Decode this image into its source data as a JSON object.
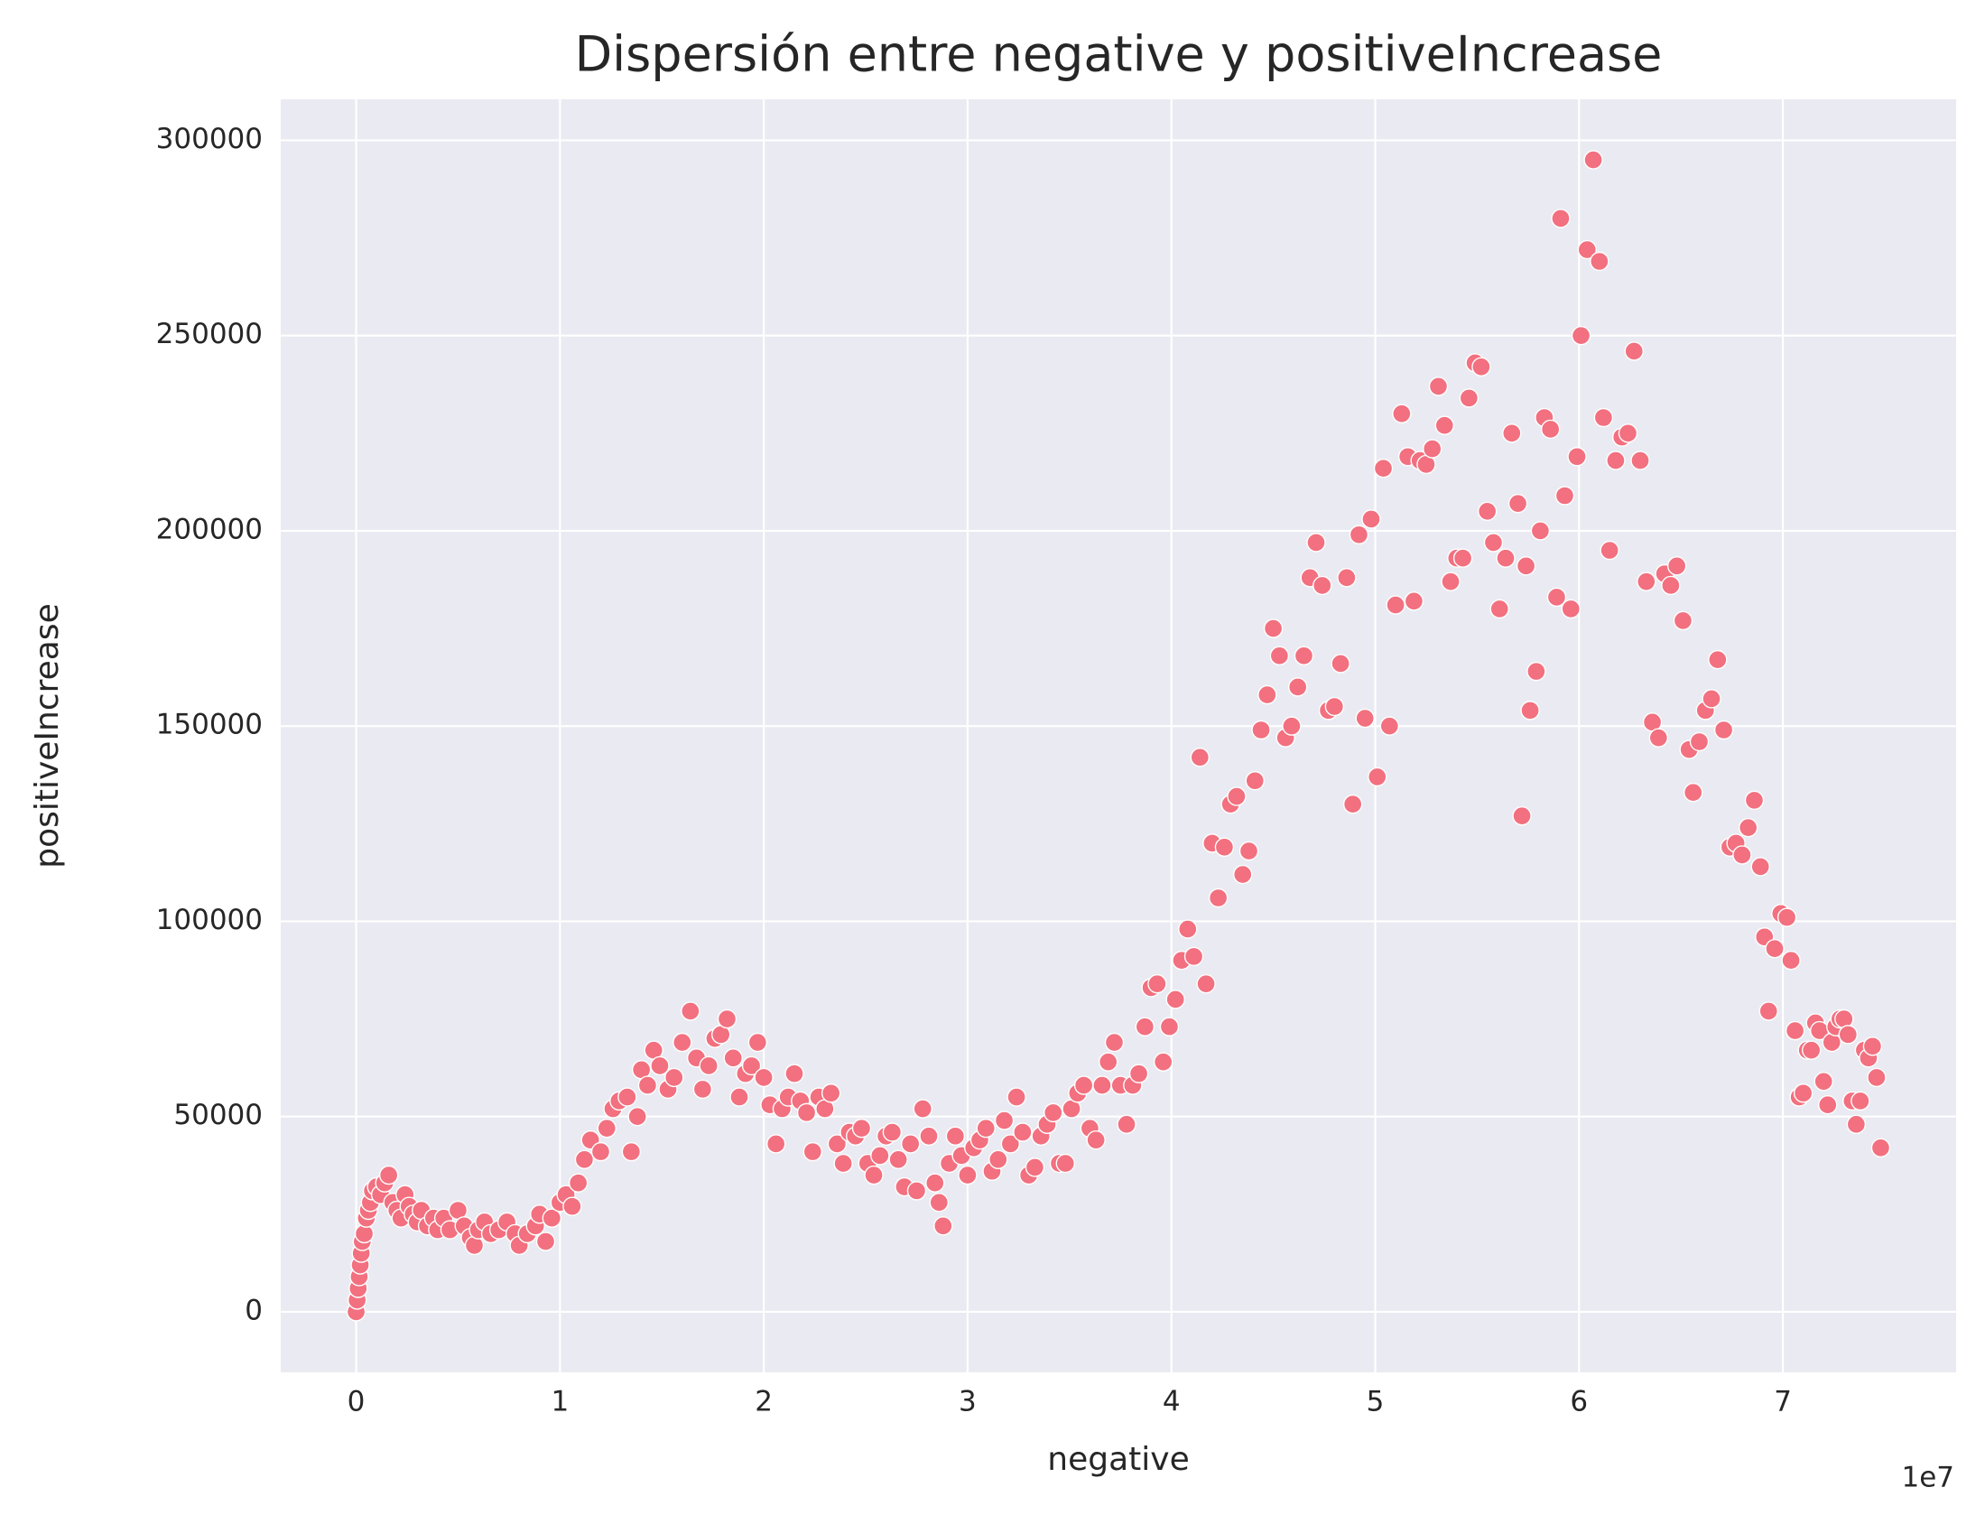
{
  "chart_data": {
    "type": "scatter",
    "title": "Dispersión entre negative y positiveIncrease",
    "x_label": "negative",
    "y_label": "positiveIncrease",
    "x_offset_label": "1e7",
    "color": "#f2707f",
    "background": "#eaeaf2",
    "grid": true,
    "xlim": [
      -3700000,
      78500000
    ],
    "ylim": [
      -15500,
      310500
    ],
    "xticks": [
      {
        "value": 0,
        "label": "0"
      },
      {
        "value": 10000000,
        "label": "1"
      },
      {
        "value": 20000000,
        "label": "2"
      },
      {
        "value": 30000000,
        "label": "3"
      },
      {
        "value": 40000000,
        "label": "4"
      },
      {
        "value": 50000000,
        "label": "5"
      },
      {
        "value": 60000000,
        "label": "6"
      },
      {
        "value": 70000000,
        "label": "7"
      }
    ],
    "yticks": [
      0,
      50000,
      100000,
      150000,
      200000,
      250000,
      300000
    ],
    "x": [
      0,
      50000,
      100000,
      150000,
      200000,
      250000,
      300000,
      400000,
      500000,
      600000,
      700000,
      800000,
      1000000,
      1200000,
      1400000,
      1600000,
      1800000,
      2000000,
      2200000,
      2400000,
      2600000,
      2800000,
      3000000,
      3200000,
      3500000,
      3800000,
      4000000,
      4300000,
      4600000,
      5000000,
      5300000,
      5600000,
      5800000,
      6000000,
      6300000,
      6600000,
      7000000,
      7400000,
      7800000,
      8000000,
      8400000,
      8800000,
      9000000,
      9300000,
      9600000,
      10000000,
      10300000,
      10600000,
      10900000,
      11200000,
      11500000,
      12000000,
      12300000,
      12600000,
      12900000,
      13300000,
      13500000,
      13800000,
      14000000,
      14300000,
      14600000,
      14900000,
      15300000,
      15600000,
      16000000,
      16400000,
      16700000,
      17000000,
      17300000,
      17600000,
      17900000,
      18200000,
      18500000,
      18800000,
      19100000,
      19400000,
      19700000,
      20000000,
      20300000,
      20600000,
      20900000,
      21200000,
      21500000,
      21800000,
      22100000,
      22400000,
      22700000,
      23000000,
      23300000,
      23600000,
      23900000,
      24200000,
      24500000,
      24800000,
      25100000,
      25400000,
      25700000,
      26000000,
      26300000,
      26600000,
      26900000,
      27200000,
      27500000,
      27800000,
      28100000,
      28400000,
      28600000,
      28800000,
      29100000,
      29400000,
      29700000,
      30000000,
      30300000,
      30600000,
      30900000,
      31200000,
      31500000,
      31800000,
      32100000,
      32400000,
      32700000,
      33000000,
      33300000,
      33600000,
      33900000,
      34200000,
      34500000,
      34800000,
      35100000,
      35400000,
      35700000,
      36000000,
      36300000,
      36600000,
      36900000,
      37200000,
      37500000,
      37800000,
      38100000,
      38400000,
      38700000,
      39000000,
      39300000,
      39600000,
      39900000,
      40200000,
      40500000,
      40800000,
      41100000,
      41400000,
      41700000,
      42000000,
      42300000,
      42600000,
      42900000,
      43200000,
      43500000,
      43800000,
      44100000,
      44400000,
      44700000,
      45000000,
      45300000,
      45600000,
      45900000,
      46200000,
      46500000,
      46800000,
      47100000,
      47400000,
      47700000,
      48000000,
      48300000,
      48600000,
      48900000,
      49200000,
      49500000,
      49800000,
      50100000,
      50400000,
      50700000,
      51000000,
      51300000,
      51600000,
      51900000,
      52200000,
      52500000,
      52800000,
      53100000,
      53400000,
      53700000,
      54000000,
      54300000,
      54600000,
      54900000,
      55200000,
      55500000,
      55800000,
      56100000,
      56400000,
      56700000,
      57000000,
      57200000,
      57400000,
      57600000,
      57900000,
      58100000,
      58300000,
      58600000,
      58900000,
      59100000,
      59300000,
      59600000,
      59900000,
      60100000,
      60400000,
      60700000,
      61000000,
      61200000,
      61500000,
      61800000,
      62100000,
      62400000,
      62700000,
      63000000,
      63300000,
      63600000,
      63900000,
      64200000,
      64500000,
      64800000,
      65100000,
      65400000,
      65600000,
      65900000,
      66200000,
      66500000,
      66800000,
      67100000,
      67400000,
      67700000,
      68000000,
      68300000,
      68600000,
      68900000,
      69100000,
      69300000,
      69600000,
      69900000,
      70200000,
      70400000,
      70600000,
      70800000,
      71000000,
      71200000,
      71400000,
      71600000,
      71800000,
      72000000,
      72200000,
      72400000,
      72600000,
      72800000,
      73000000,
      73200000,
      73400000,
      73600000,
      73800000,
      74000000,
      74200000,
      74400000,
      74600000,
      74800000
    ],
    "values": [
      0,
      3000,
      6000,
      9000,
      12000,
      15000,
      18000,
      20000,
      24000,
      26000,
      28000,
      31000,
      32000,
      30000,
      33000,
      35000,
      28000,
      26000,
      24000,
      30000,
      27000,
      25000,
      23000,
      26000,
      22000,
      24000,
      21000,
      24000,
      21000,
      26000,
      22000,
      19000,
      17000,
      21000,
      23000,
      20000,
      21000,
      23000,
      20000,
      17000,
      20000,
      22000,
      25000,
      18000,
      24000,
      28000,
      30000,
      27000,
      33000,
      39000,
      44000,
      41000,
      47000,
      52000,
      54000,
      55000,
      41000,
      50000,
      62000,
      58000,
      67000,
      63000,
      57000,
      60000,
      69000,
      77000,
      65000,
      57000,
      63000,
      70000,
      71000,
      75000,
      65000,
      55000,
      61000,
      63000,
      69000,
      60000,
      53000,
      43000,
      52000,
      55000,
      61000,
      54000,
      51000,
      41000,
      55000,
      52000,
      56000,
      43000,
      38000,
      46000,
      45000,
      47000,
      38000,
      35000,
      40000,
      45000,
      46000,
      39000,
      32000,
      43000,
      31000,
      52000,
      45000,
      33000,
      28000,
      22000,
      38000,
      45000,
      40000,
      35000,
      42000,
      44000,
      47000,
      36000,
      39000,
      49000,
      43000,
      55000,
      46000,
      35000,
      37000,
      45000,
      48000,
      51000,
      38000,
      38000,
      52000,
      56000,
      58000,
      47000,
      44000,
      58000,
      64000,
      69000,
      58000,
      48000,
      58000,
      61000,
      73000,
      83000,
      84000,
      64000,
      73000,
      80000,
      90000,
      98000,
      91000,
      142000,
      84000,
      120000,
      106000,
      119000,
      130000,
      132000,
      112000,
      118000,
      136000,
      149000,
      158000,
      175000,
      168000,
      147000,
      150000,
      160000,
      168000,
      188000,
      197000,
      186000,
      154000,
      155000,
      166000,
      188000,
      130000,
      199000,
      152000,
      203000,
      137000,
      216000,
      150000,
      181000,
      230000,
      219000,
      182000,
      218000,
      217000,
      221000,
      237000,
      227000,
      187000,
      193000,
      193000,
      234000,
      243000,
      242000,
      205000,
      197000,
      180000,
      193000,
      225000,
      207000,
      127000,
      191000,
      154000,
      164000,
      200000,
      229000,
      226000,
      183000,
      280000,
      209000,
      180000,
      219000,
      250000,
      272000,
      295000,
      269000,
      229000,
      195000,
      218000,
      224000,
      225000,
      246000,
      218000,
      187000,
      151000,
      147000,
      189000,
      186000,
      191000,
      177000,
      144000,
      133000,
      146000,
      154000,
      157000,
      167000,
      149000,
      119000,
      120000,
      117000,
      124000,
      131000,
      114000,
      96000,
      77000,
      93000,
      102000,
      101000,
      90000,
      72000,
      55000,
      56000,
      67000,
      67000,
      74000,
      72000,
      59000,
      53000,
      69000,
      73000,
      75000,
      75000,
      71000,
      54000,
      48000,
      54000,
      67000,
      65000,
      68000,
      60000,
      42000
    ]
  }
}
